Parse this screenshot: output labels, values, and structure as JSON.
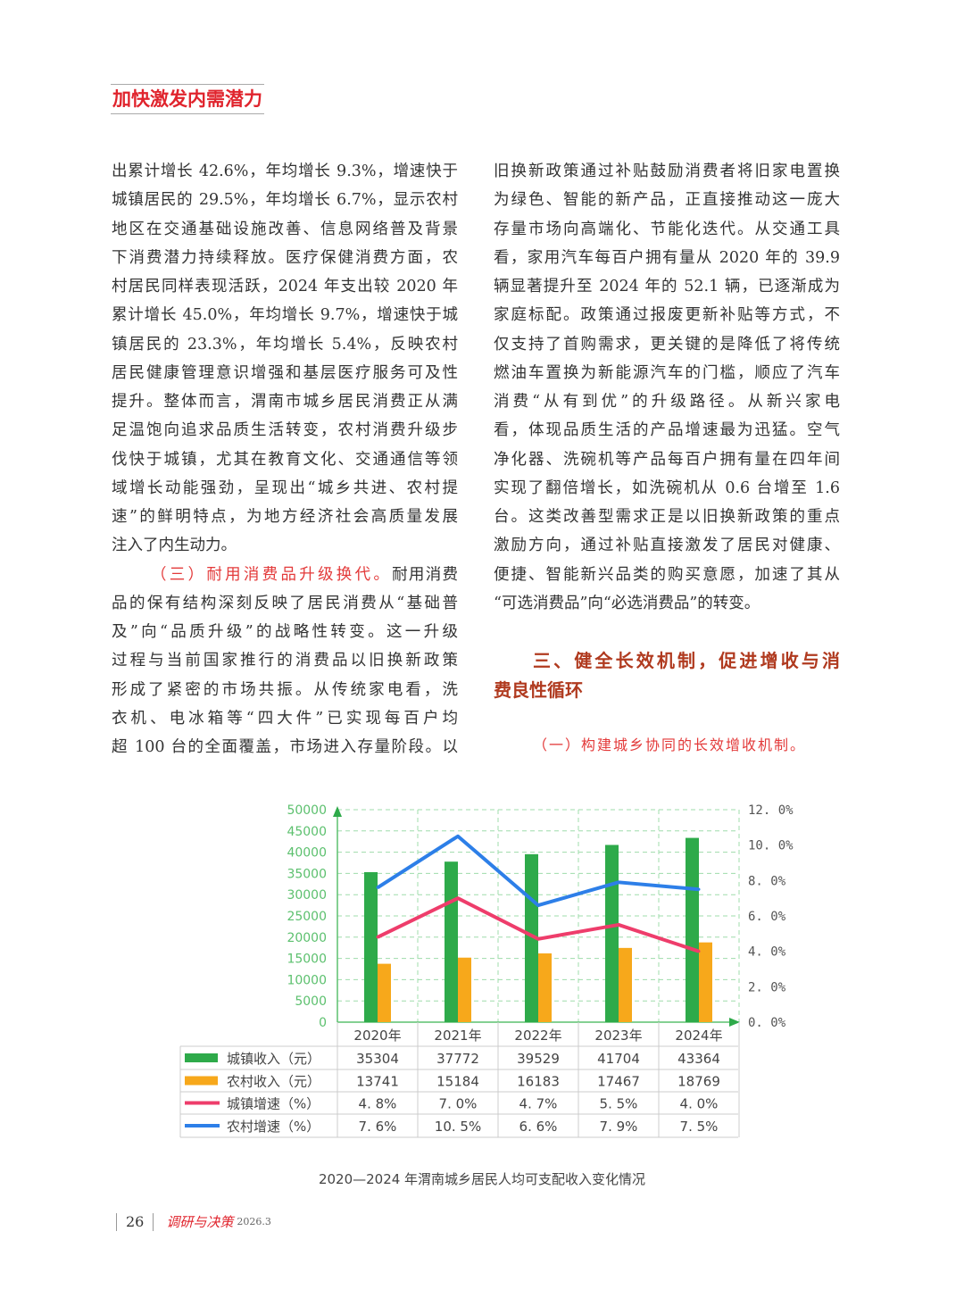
{
  "section_tag": "加快激发内需潜力",
  "left_column": [
    "出累计增长 42.6%，年均增长 9.3%，增速快于",
    "城镇居民的 29.5%，年均增长 6.7%，显示农村",
    "地区在交通基础设施改善、信息网络普及背景",
    "下消费潜力持续释放。医疗保健消费方面，农",
    "村居民同样表现活跃，2024 年支出较 2020 年",
    "累计增长 45.0%，年均增长 9.7%，增速快于城",
    "镇居民的 23.3%，年均增长 5.4%，反映农村",
    "居民健康管理意识增强和基层医疗服务可及性",
    "提升。整体而言，渭南市城乡居民消费正从满",
    "足温饱向追求品质生活转变，农村消费升级步",
    "伐快于城镇，尤其在教育文化、交通通信等领",
    "域增长动能强劲，呈现出“城乡共进、农村提",
    "速”的鲜明特点，为地方经济社会高质量发展",
    "注入了内生动力。"
  ],
  "subheading_3": "（三）耐用消费品升级换代。",
  "subheading_3_tail": "耐用消费",
  "left_column_2": [
    "品的保有结构深刻反映了居民消费从“基础普",
    "及”向“品质升级”的战略性转变。这一升级",
    "过程与当前国家推行的消费品以旧换新政策",
    "形成了紧密的市场共振。从传统家电看，洗",
    "衣机、电冰箱等“四大件”已实现每百户均",
    "超 100 台的全面覆盖，市场进入存量阶段。以"
  ],
  "right_column": [
    "旧换新政策通过补贴鼓励消费者将旧家电置换",
    "为绿色、智能的新产品，正直接推动这一庞大",
    "存量市场向高端化、节能化迭代。从交通工具",
    "看，家用汽车每百户拥有量从 2020 年的 39.9",
    "辆显著提升至 2024 年的 52.1 辆，已逐渐成为",
    "家庭标配。政策通过报废更新补贴等方式，不",
    "仅支持了首购需求，更关键的是降低了将传统",
    "燃油车置换为新能源汽车的门槛，顺应了汽车",
    "消费“从有到优”的升级路径。从新兴家电",
    "看，体现品质生活的产品增速最为迅猛。空气",
    "净化器、洗碗机等产品每百户拥有量在四年间",
    "实现了翻倍增长，如洗碗机从 0.6 台增至 1.6",
    "台。这类改善型需求正是以旧换新政策的重点",
    "激励方向，通过补贴直接激发了居民对健康、",
    "便捷、智能新兴品类的购买意愿，加速了其从",
    "“可选消费品”向“必选消费品”的转变。"
  ],
  "heading_3_line1": "三、健全长效机制，促进增收与消",
  "heading_3_line2": "费良性循环",
  "subheading_1": "（一）构建城乡协同的长效增收机制。",
  "chart_data": {
    "type": "bar",
    "categories": [
      "2020年",
      "2021年",
      "2022年",
      "2023年",
      "2024年"
    ],
    "left_axis": {
      "ylim": [
        0,
        50000
      ],
      "ticks": [
        "0",
        "5000",
        "10000",
        "15000",
        "20000",
        "25000",
        "30000",
        "35000",
        "40000",
        "45000",
        "50000"
      ]
    },
    "right_axis": {
      "ylim": [
        0,
        12
      ],
      "ticks": [
        "0. 0%",
        "2. 0%",
        "4. 0%",
        "6. 0%",
        "8. 0%",
        "10. 0%",
        "12. 0%"
      ]
    },
    "grid": true,
    "legend": "table-bottom",
    "series": [
      {
        "name": "城镇收入（元）",
        "kind": "bar",
        "axis": "left",
        "color": "#2eaa4a",
        "values": [
          35304,
          37772,
          39529,
          41704,
          43364
        ],
        "labels": [
          "35304",
          "37772",
          "39529",
          "41704",
          "43364"
        ]
      },
      {
        "name": "农村收入（元）",
        "kind": "bar",
        "axis": "left",
        "color": "#f7a81b",
        "values": [
          13741,
          15184,
          16183,
          17467,
          18769
        ],
        "labels": [
          "13741",
          "15184",
          "16183",
          "17467",
          "18769"
        ]
      },
      {
        "name": "城镇增速（%）",
        "kind": "line",
        "axis": "right",
        "color": "#ee3d6b",
        "values": [
          4.8,
          7.0,
          4.7,
          5.5,
          4.0
        ],
        "labels": [
          "4. 8%",
          "7. 0%",
          "4. 7%",
          "5. 5%",
          "4. 0%"
        ]
      },
      {
        "name": "农村增速（%）",
        "kind": "line",
        "axis": "right",
        "color": "#2d7fe8",
        "values": [
          7.6,
          10.5,
          6.6,
          7.9,
          7.5
        ],
        "labels": [
          "7. 6%",
          "10. 5%",
          "6. 6%",
          "7. 9%",
          "7. 5%"
        ]
      }
    ]
  },
  "caption": "2020—2024 年渭南城乡居民人均可支配收入变化情况",
  "footer": {
    "page_number": "26",
    "logo_text": "调研与决策",
    "issue": "2026.3"
  }
}
